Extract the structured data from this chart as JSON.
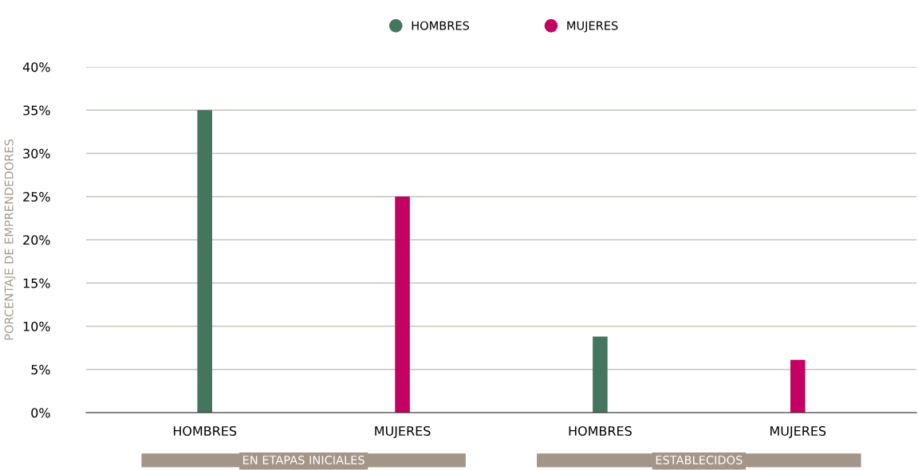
{
  "chart_data": {
    "type": "bar",
    "ylabel": "PORCENTAJE DE EMPRENDEDORES",
    "categories": [
      "HOMBRES",
      "MUJERES",
      "HOMBRES",
      "MUJERES"
    ],
    "series": [
      {
        "name": "HOMBRES",
        "color": "#43765d",
        "values": [
          35,
          null,
          8.8,
          null
        ]
      },
      {
        "name": "MUJERES",
        "color": "#c40063",
        "values": [
          null,
          25,
          null,
          6.1
        ]
      }
    ],
    "ylim": [
      0,
      40
    ],
    "yticks": [
      {
        "value": 0,
        "label": "0%"
      },
      {
        "value": 5,
        "label": "5%"
      },
      {
        "value": 10,
        "label": "10%"
      },
      {
        "value": 15,
        "label": "15%"
      },
      {
        "value": 20,
        "label": "20%"
      },
      {
        "value": 25,
        "label": "25%"
      },
      {
        "value": 30,
        "label": "30%"
      },
      {
        "value": 35,
        "label": "35%"
      },
      {
        "value": 40,
        "label": "40%"
      }
    ],
    "grid": "y",
    "legend": "top",
    "marker": "circle",
    "annotations": [
      "EN ETAPAS INICIALES",
      "ESTABLECIDOS"
    ]
  }
}
